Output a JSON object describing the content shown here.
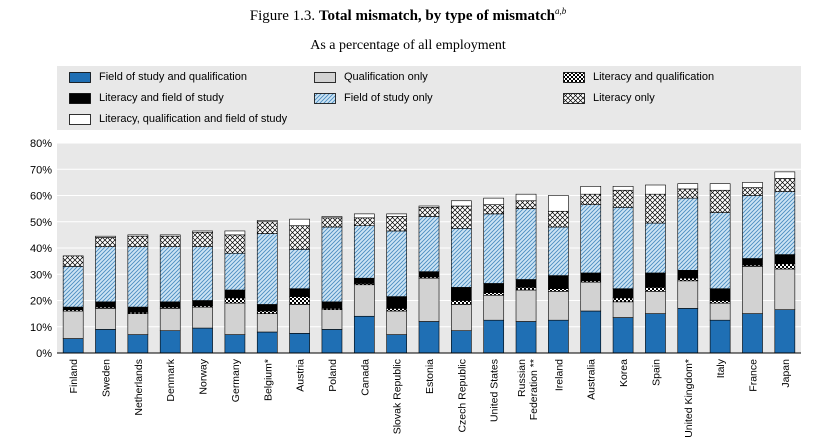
{
  "header": {
    "figure_label": "Figure 1.3.",
    "title_bold": "Total mismatch, by type of mismatch",
    "title_note": "a,b",
    "subtitle": "As a percentage of all employment"
  },
  "colors": {
    "field_qual": "#1f6fb4",
    "qual_only": "#d2d2d2",
    "lit_qual_a": "#000000",
    "lit_qual_b": "#ffffff",
    "lit_field": "#000000",
    "field_only_fill": "#cde4f4",
    "field_only_hatch": "#4a8cc0",
    "lit_only_fill": "#ffffff",
    "lit_only_hatch": "#000000",
    "all_three": "#ffffff",
    "gridline": "#ffffff",
    "plot_bg": "#e8e8e8"
  },
  "chart_data": {
    "type": "bar",
    "stacked": true,
    "title": "Total mismatch, by type of mismatch",
    "subtitle": "As a percentage of all employment",
    "ylabel": "",
    "ylim": [
      0,
      80
    ],
    "yticks": [
      0,
      10,
      20,
      30,
      40,
      50,
      60,
      70,
      80
    ],
    "ytick_labels": [
      "0%",
      "10%",
      "20%",
      "30%",
      "40%",
      "50%",
      "60%",
      "70%",
      "80%"
    ],
    "grid": true,
    "legend_position": "top",
    "categories": [
      "Finland",
      "Sweden",
      "Netherlands",
      "Denmark",
      "Norway",
      "Germany",
      "Belgium*",
      "Austria",
      "Poland",
      "Canada",
      "Slovak Republic",
      "Estonia",
      "Czech Republic",
      "United States",
      "Russian Federation **",
      "Ireland",
      "Australia",
      "Korea",
      "Spain",
      "United Kingdom*",
      "Italy",
      "France",
      "Japan"
    ],
    "series": [
      {
        "key": "field_qual",
        "name": "Field of study and qualification",
        "values": [
          5.5,
          9.0,
          7.0,
          8.5,
          9.5,
          7.0,
          8.0,
          7.5,
          9.0,
          14.0,
          7.0,
          12.0,
          8.5,
          12.5,
          12.0,
          12.5,
          16.0,
          13.5,
          15.0,
          17.0,
          12.5,
          15.0,
          16.5
        ]
      },
      {
        "key": "qual_only",
        "name": "Qualification only",
        "values": [
          10.5,
          8.0,
          8.0,
          8.5,
          8.0,
          12.0,
          7.0,
          11.0,
          7.5,
          12.0,
          9.0,
          16.5,
          10.0,
          9.5,
          12.0,
          11.0,
          11.0,
          6.0,
          8.5,
          10.5,
          6.5,
          18.0,
          15.5
        ]
      },
      {
        "key": "lit_qual",
        "name": "Literacy and qualification",
        "values": [
          0.5,
          0.5,
          0.5,
          0.5,
          0.5,
          2.0,
          1.0,
          3.0,
          0.5,
          0.5,
          1.0,
          0.5,
          1.5,
          1.0,
          1.0,
          1.0,
          0.5,
          1.5,
          1.5,
          1.0,
          1.0,
          0.5,
          2.0
        ]
      },
      {
        "key": "lit_field",
        "name": "Literacy and field of study",
        "values": [
          1.0,
          2.0,
          2.0,
          2.0,
          2.0,
          3.0,
          2.5,
          3.0,
          2.5,
          2.0,
          4.5,
          2.0,
          5.0,
          3.5,
          3.0,
          5.0,
          3.0,
          3.5,
          5.5,
          3.0,
          4.5,
          2.5,
          3.5
        ]
      },
      {
        "key": "field_only",
        "name": "Field of study only",
        "values": [
          15.5,
          21.0,
          23.0,
          21.0,
          20.5,
          14.0,
          27.0,
          15.0,
          28.5,
          20.0,
          25.0,
          21.0,
          22.5,
          26.5,
          27.0,
          18.5,
          26.0,
          31.0,
          19.0,
          27.5,
          29.0,
          24.0,
          24.0
        ]
      },
      {
        "key": "lit_only",
        "name": "Literacy only",
        "values": [
          4.0,
          3.5,
          4.0,
          4.0,
          5.5,
          7.0,
          4.5,
          9.0,
          3.5,
          3.0,
          5.5,
          3.5,
          8.5,
          3.5,
          3.0,
          6.0,
          4.0,
          6.5,
          11.0,
          3.5,
          8.5,
          3.0,
          5.0
        ]
      },
      {
        "key": "all_three",
        "name": "Literacy, qualification and field of study",
        "values": [
          0.0,
          0.5,
          0.5,
          0.5,
          0.5,
          1.5,
          0.5,
          2.5,
          0.5,
          1.5,
          1.0,
          0.5,
          2.0,
          2.5,
          2.5,
          6.0,
          3.0,
          1.5,
          3.5,
          2.0,
          2.5,
          2.0,
          2.5
        ]
      }
    ]
  }
}
